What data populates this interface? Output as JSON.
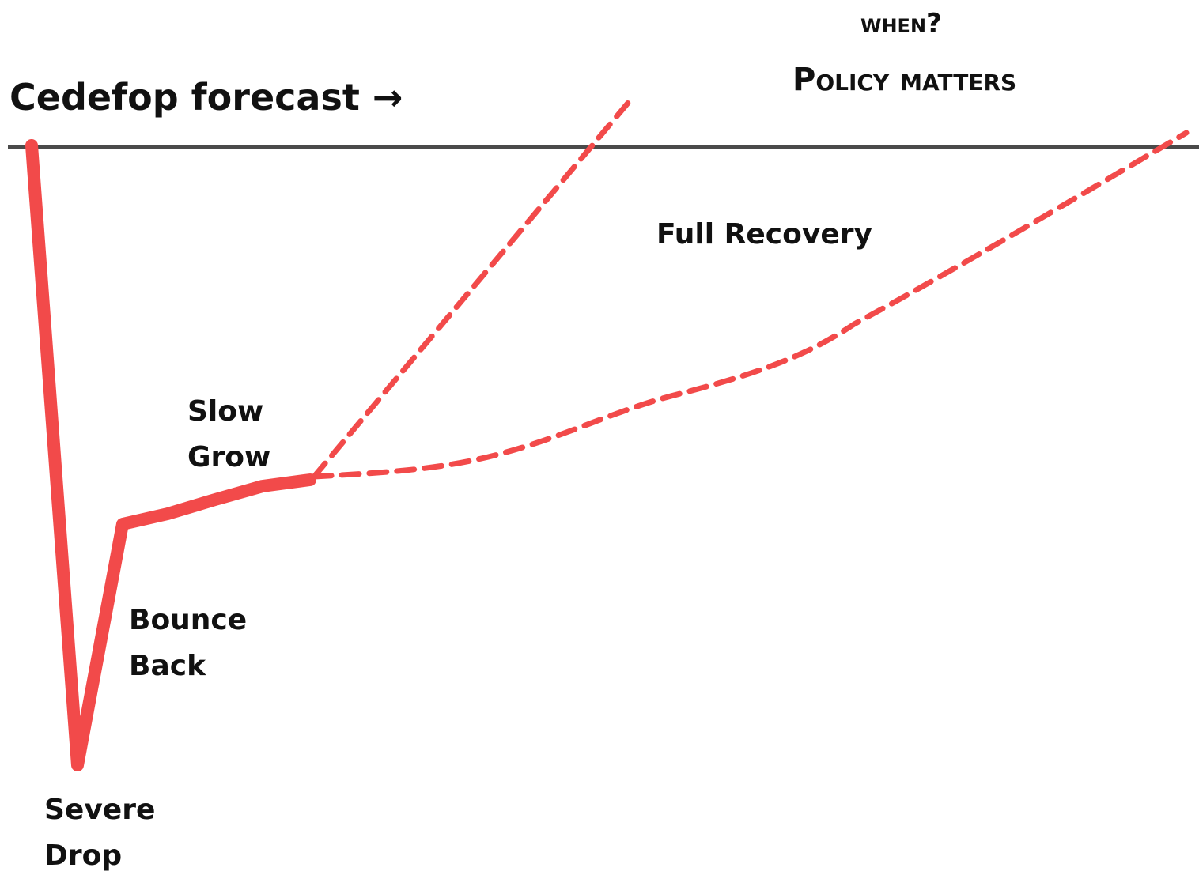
{
  "header": {
    "forecast_label": "Cedefop forecast",
    "forecast_arrow": "→",
    "question": "when?",
    "policy": "Policy matters"
  },
  "annotations": {
    "full_recovery": "Full Recovery",
    "slow_grow": [
      "Slow",
      "Grow"
    ],
    "bounce_back": [
      "Bounce",
      "Back"
    ],
    "severe_drop": [
      "Severe",
      "Drop"
    ]
  },
  "colors": {
    "curve": "#f24a4a",
    "baseline": "#4a4a4a",
    "text": "#111111"
  }
}
